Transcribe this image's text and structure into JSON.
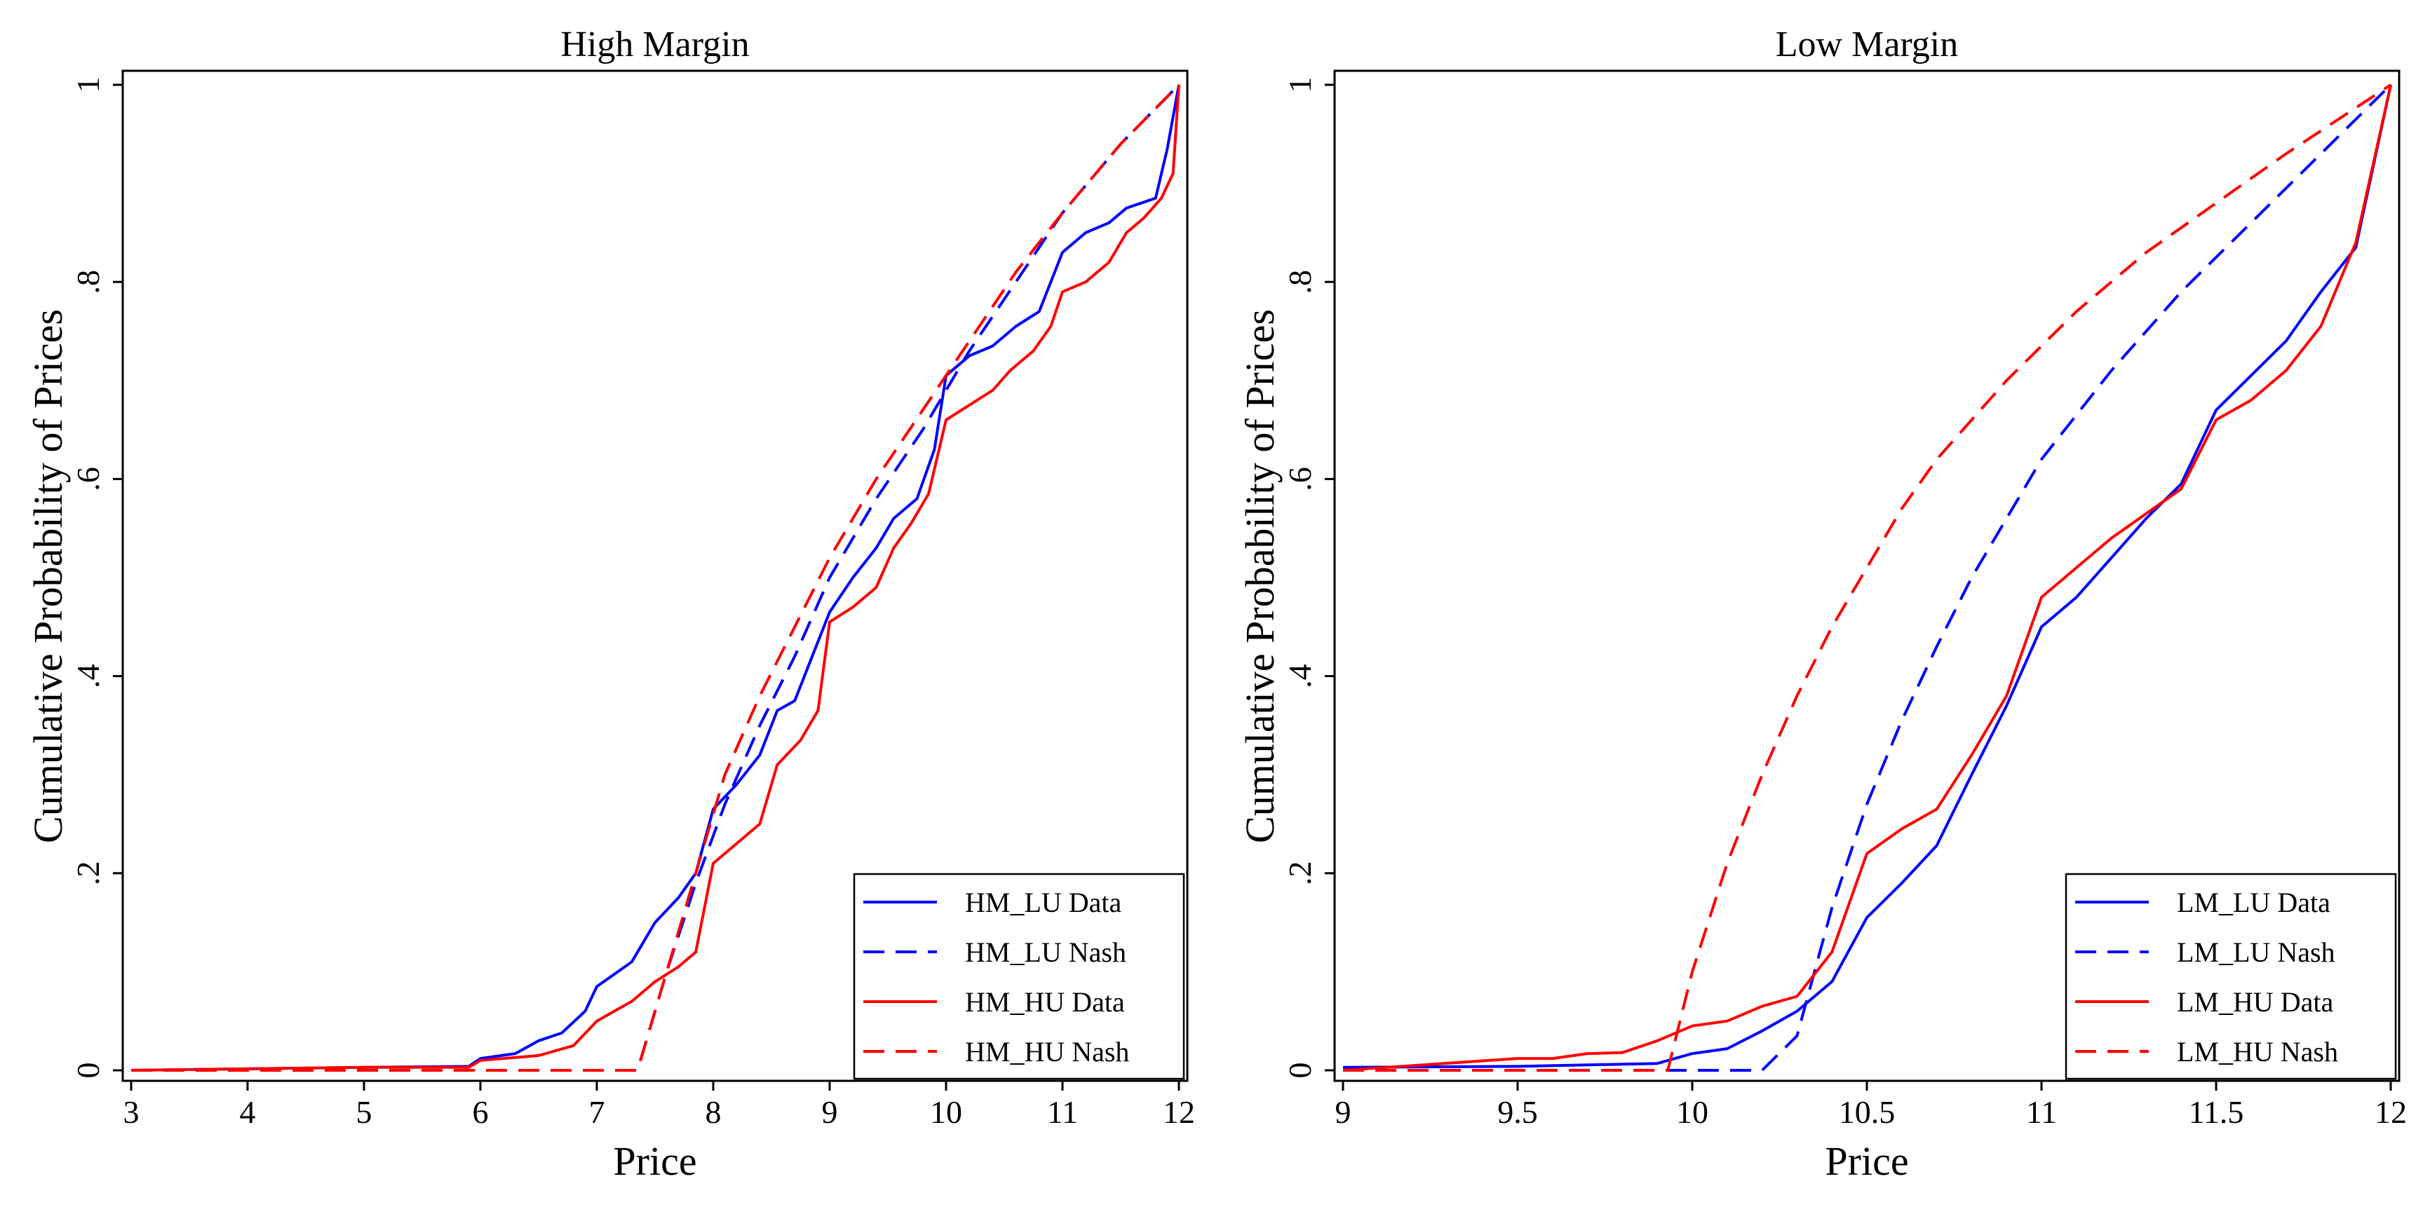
{
  "chart_data": [
    {
      "type": "line",
      "title": "High Margin",
      "xlabel": "Price",
      "ylabel": "Cumulative Probability of Prices",
      "xlim": [
        3,
        12
      ],
      "ylim": [
        0,
        1
      ],
      "xticks": [
        3,
        4,
        5,
        6,
        7,
        8,
        9,
        10,
        11,
        12
      ],
      "yticks": [
        0,
        0.2,
        0.4,
        0.6,
        0.8,
        1
      ],
      "ytick_labels": [
        "0",
        ".2",
        ".4",
        ".6",
        ".8",
        "1"
      ],
      "grid": false,
      "legend_position": "bottom-right",
      "series": [
        {
          "name": "HM_LU Data",
          "color": "#0000ff",
          "dash": "solid",
          "points": [
            [
              3,
              0
            ],
            [
              5,
              0.003
            ],
            [
              5.9,
              0.004
            ],
            [
              6,
              0.012
            ],
            [
              6.3,
              0.017
            ],
            [
              6.5,
              0.03
            ],
            [
              6.7,
              0.038
            ],
            [
              6.9,
              0.06
            ],
            [
              7,
              0.085
            ],
            [
              7.3,
              0.11
            ],
            [
              7.5,
              0.15
            ],
            [
              7.7,
              0.175
            ],
            [
              7.85,
              0.2
            ],
            [
              8,
              0.265
            ],
            [
              8.2,
              0.29
            ],
            [
              8.4,
              0.32
            ],
            [
              8.55,
              0.365
            ],
            [
              8.7,
              0.375
            ],
            [
              8.85,
              0.42
            ],
            [
              9,
              0.465
            ],
            [
              9.2,
              0.5
            ],
            [
              9.4,
              0.53
            ],
            [
              9.55,
              0.56
            ],
            [
              9.75,
              0.58
            ],
            [
              9.9,
              0.63
            ],
            [
              10,
              0.705
            ],
            [
              10.2,
              0.725
            ],
            [
              10.4,
              0.735
            ],
            [
              10.6,
              0.755
            ],
            [
              10.8,
              0.77
            ],
            [
              11,
              0.83
            ],
            [
              11.2,
              0.85
            ],
            [
              11.4,
              0.86
            ],
            [
              11.55,
              0.875
            ],
            [
              11.8,
              0.885
            ],
            [
              11.9,
              0.935
            ],
            [
              12,
              1
            ]
          ]
        },
        {
          "name": "HM_LU Nash",
          "color": "#0000ff",
          "dash": "dashed",
          "points": [
            [
              3,
              0
            ],
            [
              7.35,
              0
            ],
            [
              7.6,
              0.1
            ],
            [
              7.85,
              0.19
            ],
            [
              8.1,
              0.27
            ],
            [
              8.4,
              0.35
            ],
            [
              8.7,
              0.42
            ],
            [
              9,
              0.5
            ],
            [
              9.4,
              0.58
            ],
            [
              9.8,
              0.65
            ],
            [
              10.2,
              0.73
            ],
            [
              10.6,
              0.8
            ],
            [
              11,
              0.87
            ],
            [
              11.5,
              0.94
            ],
            [
              12,
              1
            ]
          ]
        },
        {
          "name": "HM_HU Data",
          "color": "#ff0000",
          "dash": "solid",
          "points": [
            [
              3,
              0
            ],
            [
              5,
              0.003
            ],
            [
              5.9,
              0.003
            ],
            [
              6,
              0.01
            ],
            [
              6.5,
              0.015
            ],
            [
              6.8,
              0.025
            ],
            [
              7,
              0.05
            ],
            [
              7.3,
              0.07
            ],
            [
              7.5,
              0.09
            ],
            [
              7.7,
              0.105
            ],
            [
              7.85,
              0.12
            ],
            [
              8,
              0.21
            ],
            [
              8.2,
              0.23
            ],
            [
              8.4,
              0.25
            ],
            [
              8.55,
              0.31
            ],
            [
              8.75,
              0.335
            ],
            [
              8.9,
              0.365
            ],
            [
              9,
              0.455
            ],
            [
              9.2,
              0.47
            ],
            [
              9.4,
              0.49
            ],
            [
              9.55,
              0.53
            ],
            [
              9.7,
              0.555
            ],
            [
              9.85,
              0.585
            ],
            [
              10,
              0.66
            ],
            [
              10.2,
              0.675
            ],
            [
              10.4,
              0.69
            ],
            [
              10.55,
              0.71
            ],
            [
              10.75,
              0.73
            ],
            [
              10.9,
              0.755
            ],
            [
              11,
              0.79
            ],
            [
              11.2,
              0.8
            ],
            [
              11.4,
              0.82
            ],
            [
              11.55,
              0.85
            ],
            [
              11.7,
              0.865
            ],
            [
              11.85,
              0.885
            ],
            [
              11.95,
              0.91
            ],
            [
              12,
              1
            ]
          ]
        },
        {
          "name": "HM_HU Nash",
          "color": "#ff0000",
          "dash": "dashed",
          "points": [
            [
              3,
              0
            ],
            [
              7.35,
              0
            ],
            [
              7.6,
              0.1
            ],
            [
              7.85,
              0.2
            ],
            [
              8.1,
              0.3
            ],
            [
              8.4,
              0.38
            ],
            [
              8.7,
              0.45
            ],
            [
              9,
              0.52
            ],
            [
              9.4,
              0.6
            ],
            [
              9.8,
              0.67
            ],
            [
              10.2,
              0.74
            ],
            [
              10.6,
              0.81
            ],
            [
              11,
              0.87
            ],
            [
              11.5,
              0.94
            ],
            [
              12,
              1
            ]
          ]
        }
      ]
    },
    {
      "type": "line",
      "title": "Low Margin",
      "xlabel": "Price",
      "ylabel": "Cumulative Probability of Prices",
      "xlim": [
        9,
        12
      ],
      "ylim": [
        0,
        1
      ],
      "xticks": [
        9,
        9.5,
        10,
        10.5,
        11,
        11.5,
        12
      ],
      "yticks": [
        0,
        0.2,
        0.4,
        0.6,
        0.8,
        1
      ],
      "ytick_labels": [
        "0",
        ".2",
        ".4",
        ".6",
        ".8",
        "1"
      ],
      "grid": false,
      "legend_position": "bottom-right",
      "series": [
        {
          "name": "LM_LU Data",
          "color": "#0000ff",
          "dash": "solid",
          "points": [
            [
              9,
              0.003
            ],
            [
              9.5,
              0.004
            ],
            [
              9.9,
              0.007
            ],
            [
              10,
              0.017
            ],
            [
              10.1,
              0.022
            ],
            [
              10.2,
              0.04
            ],
            [
              10.3,
              0.06
            ],
            [
              10.35,
              0.075
            ],
            [
              10.4,
              0.09
            ],
            [
              10.5,
              0.155
            ],
            [
              10.6,
              0.19
            ],
            [
              10.7,
              0.228
            ],
            [
              10.8,
              0.3
            ],
            [
              10.9,
              0.37
            ],
            [
              11,
              0.45
            ],
            [
              11.1,
              0.48
            ],
            [
              11.2,
              0.52
            ],
            [
              11.3,
              0.56
            ],
            [
              11.4,
              0.595
            ],
            [
              11.5,
              0.67
            ],
            [
              11.6,
              0.705
            ],
            [
              11.7,
              0.74
            ],
            [
              11.8,
              0.79
            ],
            [
              11.9,
              0.835
            ],
            [
              12,
              1
            ]
          ]
        },
        {
          "name": "LM_LU Nash",
          "color": "#0000ff",
          "dash": "dashed",
          "points": [
            [
              9,
              0
            ],
            [
              10.2,
              0
            ],
            [
              10.3,
              0.035
            ],
            [
              10.35,
              0.1
            ],
            [
              10.4,
              0.165
            ],
            [
              10.5,
              0.27
            ],
            [
              10.6,
              0.355
            ],
            [
              10.7,
              0.43
            ],
            [
              10.8,
              0.5
            ],
            [
              10.9,
              0.56
            ],
            [
              11,
              0.62
            ],
            [
              11.2,
              0.71
            ],
            [
              11.4,
              0.79
            ],
            [
              11.6,
              0.86
            ],
            [
              11.8,
              0.93
            ],
            [
              12,
              1
            ]
          ]
        },
        {
          "name": "LM_HU Data",
          "color": "#ff0000",
          "dash": "solid",
          "points": [
            [
              9,
              0
            ],
            [
              9.5,
              0.012
            ],
            [
              9.6,
              0.012
            ],
            [
              9.7,
              0.017
            ],
            [
              9.8,
              0.018
            ],
            [
              9.9,
              0.03
            ],
            [
              10,
              0.045
            ],
            [
              10.1,
              0.05
            ],
            [
              10.2,
              0.065
            ],
            [
              10.3,
              0.075
            ],
            [
              10.4,
              0.12
            ],
            [
              10.5,
              0.22
            ],
            [
              10.6,
              0.245
            ],
            [
              10.7,
              0.265
            ],
            [
              10.8,
              0.32
            ],
            [
              10.9,
              0.38
            ],
            [
              11,
              0.48
            ],
            [
              11.1,
              0.51
            ],
            [
              11.2,
              0.54
            ],
            [
              11.3,
              0.565
            ],
            [
              11.4,
              0.59
            ],
            [
              11.5,
              0.66
            ],
            [
              11.6,
              0.68
            ],
            [
              11.7,
              0.71
            ],
            [
              11.8,
              0.755
            ],
            [
              11.9,
              0.84
            ],
            [
              12,
              1
            ]
          ]
        },
        {
          "name": "LM_HU Nash",
          "color": "#ff0000",
          "dash": "dashed",
          "points": [
            [
              9,
              0
            ],
            [
              9.93,
              0
            ],
            [
              10,
              0.1
            ],
            [
              10.1,
              0.21
            ],
            [
              10.2,
              0.3
            ],
            [
              10.3,
              0.38
            ],
            [
              10.4,
              0.45
            ],
            [
              10.5,
              0.51
            ],
            [
              10.6,
              0.57
            ],
            [
              10.7,
              0.62
            ],
            [
              10.9,
              0.7
            ],
            [
              11.1,
              0.77
            ],
            [
              11.3,
              0.83
            ],
            [
              11.5,
              0.88
            ],
            [
              11.7,
              0.93
            ],
            [
              11.85,
              0.965
            ],
            [
              12,
              1
            ]
          ]
        }
      ]
    }
  ]
}
